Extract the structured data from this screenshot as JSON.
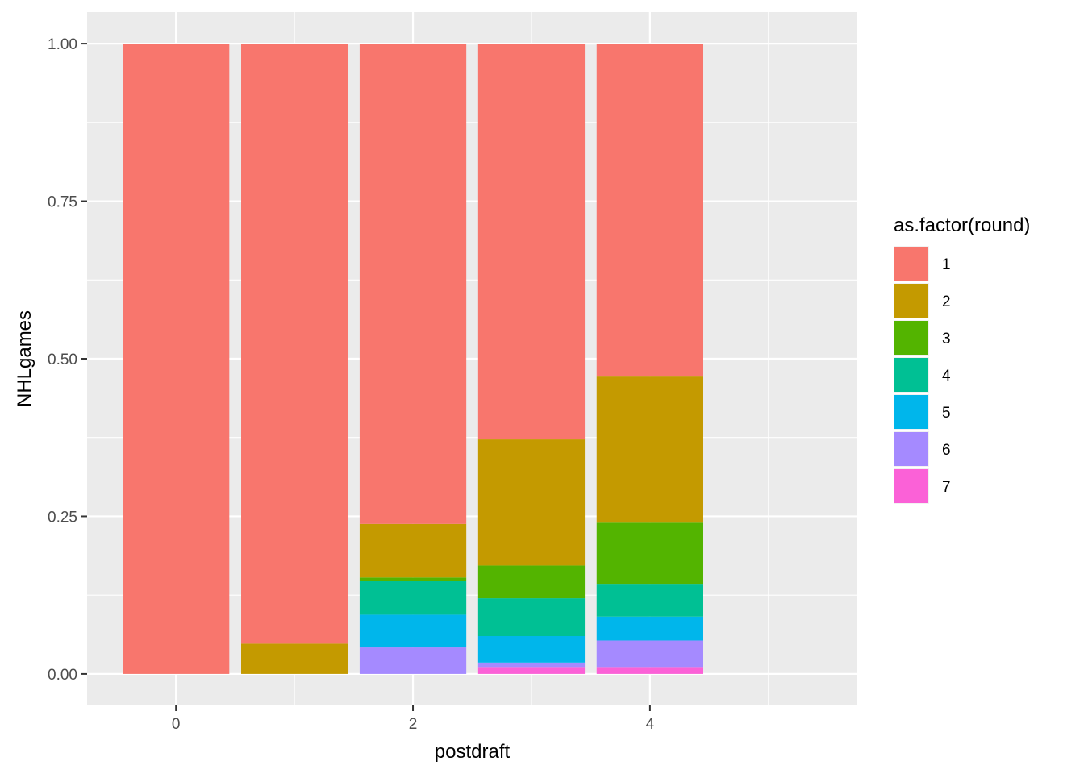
{
  "chart_data": {
    "type": "bar",
    "stacked": true,
    "position": "fill",
    "xlabel": "postdraft",
    "ylabel": "NHLgames",
    "xlim": [
      -0.75,
      5.75
    ],
    "ylim": [
      -0.05,
      1.05
    ],
    "x_ticks": [
      0,
      2,
      4
    ],
    "x_tick_labels": [
      "0",
      "2",
      "4"
    ],
    "y_ticks": [
      0,
      0.25,
      0.5,
      0.75,
      1
    ],
    "y_tick_labels": [
      "0.00",
      "0.25",
      "0.50",
      "0.75",
      "1.00"
    ],
    "grid": true,
    "legend": {
      "title": "as.factor(round)",
      "position": "right"
    },
    "x": [
      0,
      1,
      2,
      3,
      4
    ],
    "series": [
      {
        "name": "1",
        "color": "#F8766D",
        "values": [
          1.0,
          0.952,
          0.762,
          0.628,
          0.527
        ]
      },
      {
        "name": "2",
        "color": "#C49A00",
        "values": [
          0.0,
          0.048,
          0.085,
          0.2,
          0.233
        ]
      },
      {
        "name": "3",
        "color": "#53B400",
        "values": [
          0.0,
          0.0,
          0.005,
          0.052,
          0.097
        ]
      },
      {
        "name": "4",
        "color": "#00C094",
        "values": [
          0.0,
          0.0,
          0.054,
          0.06,
          0.052
        ]
      },
      {
        "name": "5",
        "color": "#00B6EB",
        "values": [
          0.0,
          0.0,
          0.052,
          0.042,
          0.038
        ]
      },
      {
        "name": "6",
        "color": "#A58AFF",
        "values": [
          0.0,
          0.0,
          0.042,
          0.007,
          0.042
        ]
      },
      {
        "name": "7",
        "color": "#FB61D7",
        "values": [
          0.0,
          0.0,
          0.0,
          0.011,
          0.011
        ]
      }
    ]
  }
}
